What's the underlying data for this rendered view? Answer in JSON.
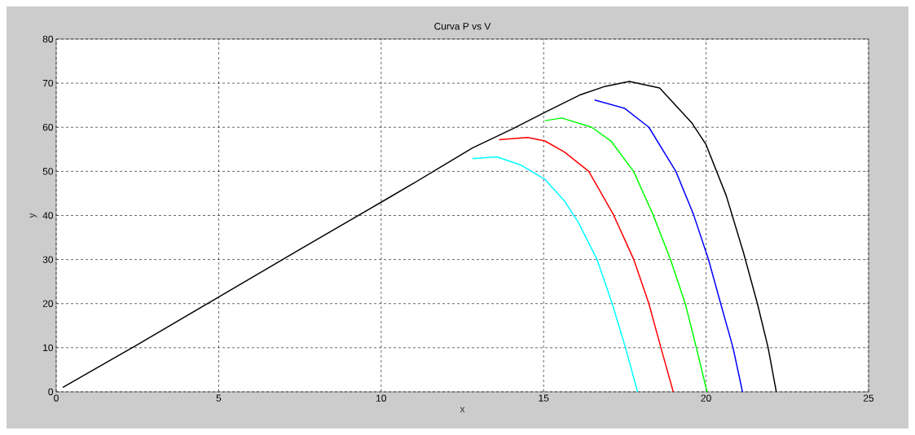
{
  "chart_data": {
    "type": "line",
    "title": "Curva P vs V",
    "xlabel": "x",
    "ylabel": "y",
    "xlim": [
      0,
      25
    ],
    "ylim": [
      0,
      80
    ],
    "xticks": [
      0,
      5,
      10,
      15,
      20,
      25
    ],
    "yticks": [
      0,
      10,
      20,
      30,
      40,
      50,
      60,
      70,
      80
    ],
    "grid": true,
    "line_style": "solid",
    "marker": "none",
    "series": [
      {
        "color": "#00ffff",
        "x": [
          12.81,
          13.56,
          14.31,
          15.04,
          15.64,
          16.07,
          16.64,
          17.11,
          17.52,
          17.89
        ],
        "values": [
          52.9,
          53.3,
          51.4,
          48.2,
          43.3,
          38.4,
          30.1,
          20,
          10,
          0
        ]
      },
      {
        "color": "#ff0000",
        "x": [
          13.63,
          14.51,
          15.04,
          15.64,
          16.39,
          17.14,
          17.77,
          18.24,
          18.61,
          18.99
        ],
        "values": [
          57.2,
          57.7,
          56.9,
          54.4,
          50,
          40.3,
          30.1,
          20,
          10,
          0
        ]
      },
      {
        "color": "#00ff00",
        "x": [
          15.04,
          15.56,
          16.48,
          17.07,
          17.77,
          18.36,
          18.9,
          19.36,
          19.7,
          20.03
        ],
        "values": [
          61.5,
          62.1,
          60,
          56.9,
          50,
          40.3,
          30.1,
          20,
          10,
          0
        ]
      },
      {
        "color": "#0000ff",
        "x": [
          16.57,
          17.49,
          18.24,
          19.07,
          19.61,
          20.07,
          20.45,
          20.83,
          21.12
        ],
        "values": [
          66.2,
          64.3,
          60,
          50,
          40.3,
          30.1,
          20,
          10,
          0
        ]
      },
      {
        "color": "#000000",
        "x": [
          0.2,
          2.5,
          5,
          7.5,
          10,
          11,
          11.88,
          12.81,
          14.06,
          15.04,
          16.14,
          16.9,
          17.64,
          18.57,
          19.57,
          19.99,
          20.62,
          21.15,
          21.58,
          21.91,
          22.16
        ],
        "values": [
          1,
          10.7,
          21.5,
          32.3,
          43,
          47.3,
          51.2,
          55.3,
          59.7,
          63.4,
          67.4,
          69.3,
          70.4,
          68.9,
          60.9,
          56.2,
          44.5,
          31.6,
          20,
          10,
          0
        ]
      }
    ]
  }
}
